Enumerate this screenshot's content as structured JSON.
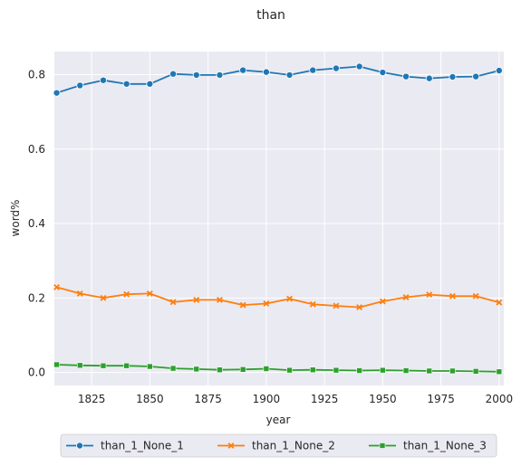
{
  "chart_data": {
    "type": "line",
    "title": "than",
    "xlabel": "year",
    "ylabel": "word%",
    "xlim": [
      1809,
      2002
    ],
    "ylim": [
      -0.035,
      0.862
    ],
    "xticks": [
      1825,
      1850,
      1875,
      1900,
      1925,
      1950,
      1975,
      2000
    ],
    "xtick_labels": [
      "1825",
      "1850",
      "1875",
      "1900",
      "1925",
      "1950",
      "1975",
      "2000"
    ],
    "yticks": [
      0.0,
      0.2,
      0.4,
      0.6,
      0.8
    ],
    "ytick_labels": [
      "0.0",
      "0.2",
      "0.4",
      "0.6",
      "0.8"
    ],
    "grid": true,
    "legend_position": "bottom-center",
    "background": "#eaeaf2",
    "x": [
      1810,
      1820,
      1830,
      1840,
      1850,
      1860,
      1870,
      1880,
      1890,
      1900,
      1910,
      1920,
      1930,
      1940,
      1950,
      1960,
      1970,
      1980,
      1990,
      2000
    ],
    "series": [
      {
        "name": "than_1_None_1",
        "color": "#1f77b4",
        "marker": "circle",
        "values": [
          0.751,
          0.771,
          0.785,
          0.775,
          0.775,
          0.802,
          0.799,
          0.799,
          0.812,
          0.807,
          0.799,
          0.812,
          0.817,
          0.822,
          0.806,
          0.795,
          0.79,
          0.794,
          0.795,
          0.811
        ]
      },
      {
        "name": "than_1_None_2",
        "color": "#ff7f0e",
        "marker": "x",
        "values": [
          0.229,
          0.212,
          0.2,
          0.21,
          0.212,
          0.189,
          0.195,
          0.195,
          0.181,
          0.185,
          0.198,
          0.183,
          0.179,
          0.175,
          0.191,
          0.202,
          0.209,
          0.205,
          0.205,
          0.188
        ]
      },
      {
        "name": "than_1_None_3",
        "color": "#2ca02c",
        "marker": "square",
        "values": [
          0.021,
          0.019,
          0.018,
          0.018,
          0.016,
          0.011,
          0.009,
          0.007,
          0.008,
          0.01,
          0.006,
          0.007,
          0.006,
          0.005,
          0.006,
          0.005,
          0.004,
          0.004,
          0.003,
          0.002
        ]
      }
    ]
  }
}
